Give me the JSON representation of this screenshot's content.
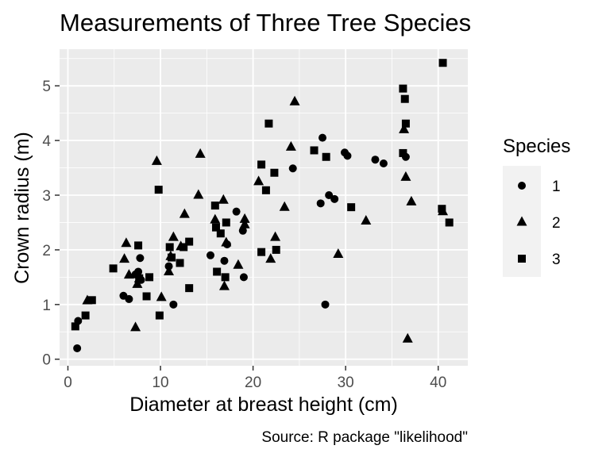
{
  "chart_data": {
    "type": "scatter",
    "title": "Measurements of Three Tree Species",
    "xlabel": "Diameter at breast height (cm)",
    "ylabel": "Crown radius (m)",
    "caption": "Source: R package \"likelihood\"",
    "xlim": [
      -0.9,
      43.2
    ],
    "ylim": [
      -0.12,
      5.67
    ],
    "x_ticks": [
      0,
      10,
      20,
      30,
      40
    ],
    "y_ticks": [
      0,
      1,
      2,
      3,
      4,
      5
    ],
    "grid": true,
    "legend": {
      "title": "Species",
      "position": "right"
    },
    "series": [
      {
        "name": "1",
        "shape": "circle",
        "points": [
          [
            1.0,
            0.2
          ],
          [
            1.1,
            0.7
          ],
          [
            6.0,
            1.16
          ],
          [
            6.6,
            1.1
          ],
          [
            7.3,
            1.55
          ],
          [
            7.6,
            1.6
          ],
          [
            7.8,
            1.85
          ],
          [
            7.9,
            1.45
          ],
          [
            10.9,
            1.7
          ],
          [
            11.4,
            1.0
          ],
          [
            15.4,
            1.9
          ],
          [
            16.9,
            1.8
          ],
          [
            17.2,
            2.1
          ],
          [
            18.2,
            2.7
          ],
          [
            18.9,
            2.35
          ],
          [
            19.0,
            1.5
          ],
          [
            24.3,
            3.49
          ],
          [
            27.3,
            2.85
          ],
          [
            27.5,
            4.05
          ],
          [
            27.8,
            1.0
          ],
          [
            28.2,
            3.0
          ],
          [
            28.8,
            2.93
          ],
          [
            29.9,
            3.78
          ],
          [
            30.2,
            3.72
          ],
          [
            33.2,
            3.65
          ],
          [
            34.1,
            3.58
          ],
          [
            36.5,
            3.7
          ]
        ]
      },
      {
        "name": "2",
        "shape": "triangle",
        "points": [
          [
            2.1,
            1.07
          ],
          [
            6.1,
            1.83
          ],
          [
            6.3,
            2.12
          ],
          [
            6.6,
            1.54
          ],
          [
            7.3,
            0.58
          ],
          [
            7.5,
            1.37
          ],
          [
            7.7,
            1.47
          ],
          [
            9.6,
            3.62
          ],
          [
            10.1,
            1.13
          ],
          [
            10.9,
            1.6
          ],
          [
            11.1,
            1.88
          ],
          [
            11.4,
            2.23
          ],
          [
            12.2,
            2.06
          ],
          [
            12.6,
            2.65
          ],
          [
            14.1,
            3.0
          ],
          [
            14.3,
            3.75
          ],
          [
            15.9,
            2.55
          ],
          [
            16.8,
            2.91
          ],
          [
            16.9,
            1.33
          ],
          [
            17.1,
            2.13
          ],
          [
            18.4,
            1.72
          ],
          [
            19.1,
            2.56
          ],
          [
            19.1,
            2.46
          ],
          [
            20.6,
            3.25
          ],
          [
            21.9,
            1.83
          ],
          [
            22.4,
            2.23
          ],
          [
            23.4,
            2.78
          ],
          [
            24.1,
            3.88
          ],
          [
            24.5,
            4.71
          ],
          [
            29.2,
            1.92
          ],
          [
            32.2,
            2.53
          ],
          [
            36.3,
            4.2
          ],
          [
            36.5,
            3.33
          ],
          [
            36.7,
            0.37
          ],
          [
            37.1,
            2.88
          ],
          [
            40.5,
            2.7
          ]
        ]
      },
      {
        "name": "3",
        "shape": "square",
        "points": [
          [
            0.8,
            0.6
          ],
          [
            1.9,
            0.8
          ],
          [
            2.6,
            1.08
          ],
          [
            4.9,
            1.66
          ],
          [
            7.6,
            2.08
          ],
          [
            7.7,
            1.48
          ],
          [
            8.5,
            1.15
          ],
          [
            8.8,
            1.5
          ],
          [
            9.8,
            3.1
          ],
          [
            9.9,
            0.8
          ],
          [
            11.0,
            2.05
          ],
          [
            11.2,
            1.86
          ],
          [
            12.1,
            1.76
          ],
          [
            12.5,
            2.05
          ],
          [
            13.1,
            2.15
          ],
          [
            13.1,
            1.3
          ],
          [
            15.9,
            2.81
          ],
          [
            16.0,
            2.41
          ],
          [
            16.1,
            1.6
          ],
          [
            16.5,
            2.3
          ],
          [
            17.1,
            2.5
          ],
          [
            17.0,
            1.5
          ],
          [
            20.9,
            1.96
          ],
          [
            20.9,
            3.56
          ],
          [
            21.7,
            4.31
          ],
          [
            22.3,
            3.41
          ],
          [
            21.4,
            3.09
          ],
          [
            22.5,
            2.0
          ],
          [
            27.9,
            3.7
          ],
          [
            30.6,
            2.78
          ],
          [
            36.2,
            4.95
          ],
          [
            36.4,
            4.76
          ],
          [
            36.5,
            4.31
          ],
          [
            36.2,
            3.77
          ],
          [
            40.4,
            2.75
          ],
          [
            40.5,
            5.42
          ],
          [
            41.2,
            2.5
          ],
          [
            26.6,
            3.82
          ]
        ]
      }
    ]
  }
}
